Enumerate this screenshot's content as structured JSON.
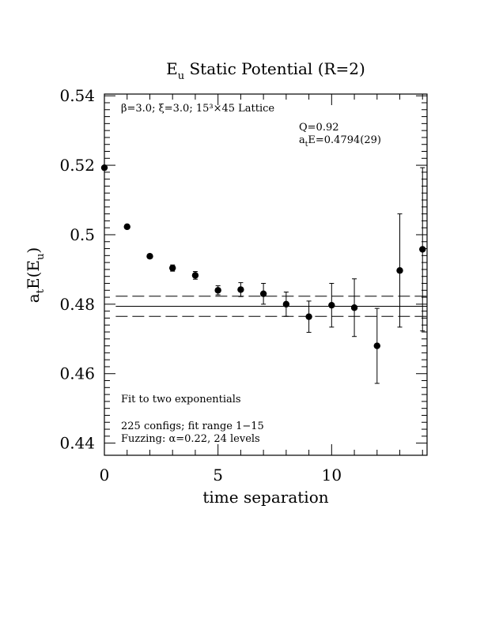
{
  "chart_data": {
    "type": "scatter",
    "title": "E",
    "title_sub": "u",
    "title_rest": " Static Potential (R=2)",
    "xlabel": "time separation",
    "ylabel_main": "a",
    "ylabel_sub1": "t",
    "ylabel_mid": "E(E",
    "ylabel_sub2": "u",
    "ylabel_end": ")",
    "xlim": [
      0,
      14.2
    ],
    "ylim": [
      0.4365,
      0.5405
    ],
    "x_ticks": [
      0,
      5,
      10
    ],
    "x_tick_labels": [
      "0",
      "5",
      "10"
    ],
    "y_ticks": [
      0.44,
      0.46,
      0.48,
      0.5,
      0.52,
      0.54
    ],
    "y_tick_labels": [
      "0.44",
      "0.46",
      "0.48",
      "0.5",
      "0.52",
      "0.54"
    ],
    "grid": false,
    "points": [
      {
        "x": 0,
        "y": 0.5193,
        "err": 0.0003
      },
      {
        "x": 1,
        "y": 0.5023,
        "err": 0.0004
      },
      {
        "x": 2,
        "y": 0.4938,
        "err": 0.0006
      },
      {
        "x": 3,
        "y": 0.4904,
        "err": 0.0009
      },
      {
        "x": 4,
        "y": 0.4883,
        "err": 0.0011
      },
      {
        "x": 5,
        "y": 0.484,
        "err": 0.0013
      },
      {
        "x": 6,
        "y": 0.4842,
        "err": 0.002
      },
      {
        "x": 7,
        "y": 0.483,
        "err": 0.003
      },
      {
        "x": 8,
        "y": 0.48,
        "err": 0.0035
      },
      {
        "x": 9,
        "y": 0.4764,
        "err": 0.0045
      },
      {
        "x": 10,
        "y": 0.4797,
        "err": 0.0063
      },
      {
        "x": 11,
        "y": 0.479,
        "err": 0.0083
      },
      {
        "x": 12,
        "y": 0.468,
        "err": 0.0108
      },
      {
        "x": 13,
        "y": 0.4897,
        "err": 0.0163
      },
      {
        "x": 14,
        "y": 0.4958,
        "err": 0.0235
      }
    ],
    "fit": {
      "value": 0.4794,
      "error": 0.0029,
      "x_range": [
        0.5,
        14.2
      ]
    },
    "annotations": {
      "lattice": "β=3.0; ξ=3.0; 15³×45 Lattice",
      "q": "Q=0.92",
      "ate_pre": "a",
      "ate_sub": "t",
      "ate_post": "E=0.4794(29)",
      "method": "Fit to two exponentials",
      "configs": "225 configs; fit range 1−15",
      "fuzzing": "Fuzzing: α=0.22, 24 levels"
    }
  }
}
